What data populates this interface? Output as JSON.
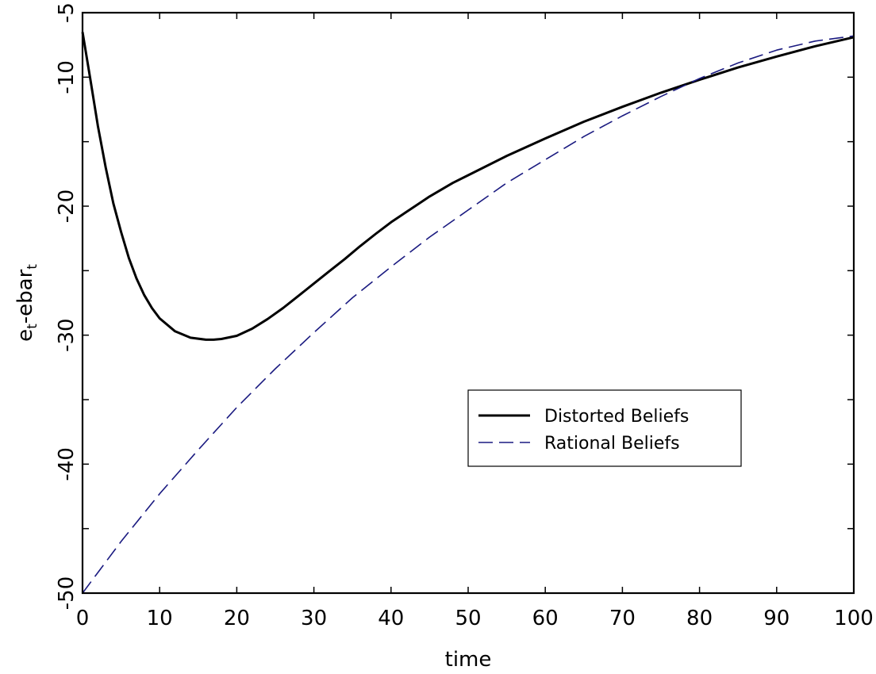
{
  "chart_data": {
    "type": "line",
    "xlabel": "time",
    "ylabel": "e",
    "ylabel_sub": "t",
    "ylabel_mid": "-ebar",
    "ylabel_sub2": "t",
    "xlim": [
      0,
      100
    ],
    "ylim": [
      -50,
      -5
    ],
    "xticks": [
      0,
      10,
      20,
      30,
      40,
      50,
      60,
      70,
      80,
      90,
      100
    ],
    "yticks": [
      -50,
      -40,
      -30,
      -20,
      -10,
      -5
    ],
    "legend_position": "center-right",
    "grid": false,
    "series": [
      {
        "name": "Distorted Beliefs",
        "color": "#000000",
        "style": "solid",
        "x": [
          0,
          1,
          2,
          3,
          4,
          5,
          6,
          7,
          8,
          9,
          10,
          12,
          14,
          16,
          17,
          18,
          20,
          22,
          24,
          26,
          28,
          30,
          32,
          34,
          36,
          38,
          40,
          42,
          45,
          48,
          50,
          55,
          60,
          65,
          70,
          75,
          80,
          85,
          90,
          95,
          100
        ],
        "y": [
          -6.5,
          -10.1,
          -13.8,
          -17.0,
          -19.8,
          -22.0,
          -24.0,
          -25.6,
          -26.9,
          -27.9,
          -28.7,
          -29.7,
          -30.2,
          -30.35,
          -30.35,
          -30.3,
          -30.05,
          -29.5,
          -28.75,
          -27.9,
          -26.95,
          -26.0,
          -25.05,
          -24.1,
          -23.1,
          -22.15,
          -21.25,
          -20.45,
          -19.25,
          -18.2,
          -17.6,
          -16.1,
          -14.75,
          -13.45,
          -12.3,
          -11.2,
          -10.2,
          -9.25,
          -8.4,
          -7.6,
          -6.9
        ]
      },
      {
        "name": "Rational Beliefs",
        "color": "#1a1a80",
        "style": "dashed",
        "x": [
          0,
          5,
          10,
          15,
          20,
          25,
          30,
          35,
          40,
          45,
          50,
          55,
          60,
          65,
          70,
          75,
          80,
          85,
          90,
          95,
          100
        ],
        "y": [
          -50.0,
          -46.0,
          -42.3,
          -38.9,
          -35.6,
          -32.6,
          -29.8,
          -27.1,
          -24.7,
          -22.4,
          -20.3,
          -18.2,
          -16.4,
          -14.6,
          -13.0,
          -11.5,
          -10.1,
          -8.9,
          -7.9,
          -7.2,
          -6.8
        ]
      }
    ]
  }
}
